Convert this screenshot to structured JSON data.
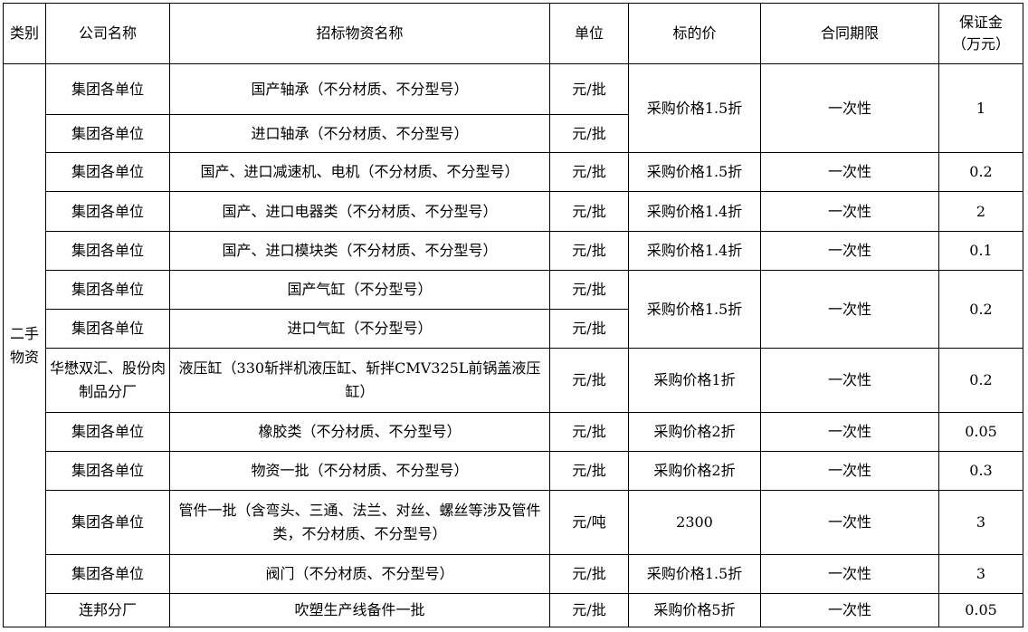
{
  "header": {
    "category": "类别",
    "company": "公司名称",
    "item": "招标物资名称",
    "unit": "单位",
    "price": "标的价",
    "term": "合同期限",
    "deposit": "保证金（万元）"
  },
  "category": "二手物资",
  "rows": [
    {
      "company": "集团各单位",
      "item": "国产轴承（不分材质、不分型号）",
      "unit": "元/批",
      "price": "采购价格1.5折",
      "term": "一次性",
      "deposit": "1"
    },
    {
      "company": "集团各单位",
      "item": "进口轴承（不分材质、不分型号）",
      "unit": "元/批"
    },
    {
      "company": "集团各单位",
      "item": "国产、进口减速机、电机（不分材质、不分型号）",
      "unit": "元/批",
      "price": "采购价格1.5折",
      "term": "一次性",
      "deposit": "0.2"
    },
    {
      "company": "集团各单位",
      "item": "国产、进口电器类（不分材质、不分型号）",
      "unit": "元/批",
      "price": "采购价格1.4折",
      "term": "一次性",
      "deposit": "2"
    },
    {
      "company": "集团各单位",
      "item": "国产、进口模块类（不分材质、不分型号）",
      "unit": "元/批",
      "price": "采购价格1.4折",
      "term": "一次性",
      "deposit": "0.1"
    },
    {
      "company": "集团各单位",
      "item": "国产气缸（不分型号）",
      "unit": "元/批",
      "price": "采购价格1.5折",
      "term": "一次性",
      "deposit": "0.2"
    },
    {
      "company": "集团各单位",
      "item": "进口气缸（不分型号）",
      "unit": "元/批"
    },
    {
      "company": "华懋双汇、股份肉制品分厂",
      "item": "液压缸（330斩拌机液压缸、斩拌CMV325L前锅盖液压缸）",
      "unit": "元/批",
      "price": "采购价格1折",
      "term": "一次性",
      "deposit": "0.2"
    },
    {
      "company": "集团各单位",
      "item": "橡胶类（不分材质、不分型号）",
      "unit": "元/批",
      "price": "采购价格2折",
      "term": "一次性",
      "deposit": "0.05"
    },
    {
      "company": "集团各单位",
      "item": "物资一批（不分材质、不分型号）",
      "unit": "元/批",
      "price": "采购价格2折",
      "term": "一次性",
      "deposit": "0.3"
    },
    {
      "company": "集团各单位",
      "item": "管件一批（含弯头、三通、法兰、对丝、螺丝等涉及管件类，不分材质、不分型号）",
      "unit": "元/吨",
      "price": "2300",
      "term": "一次性",
      "deposit": "3"
    },
    {
      "company": "集团各单位",
      "item": "阀门（不分材质、不分型号）",
      "unit": "元/批",
      "price": "采购价格1.5折",
      "term": "一次性",
      "deposit": "3"
    },
    {
      "company": "连邦分厂",
      "item": "吹塑生产线备件一批",
      "unit": "元/批",
      "price": "采购价格5折",
      "term": "一次性",
      "deposit": "0.05"
    }
  ]
}
